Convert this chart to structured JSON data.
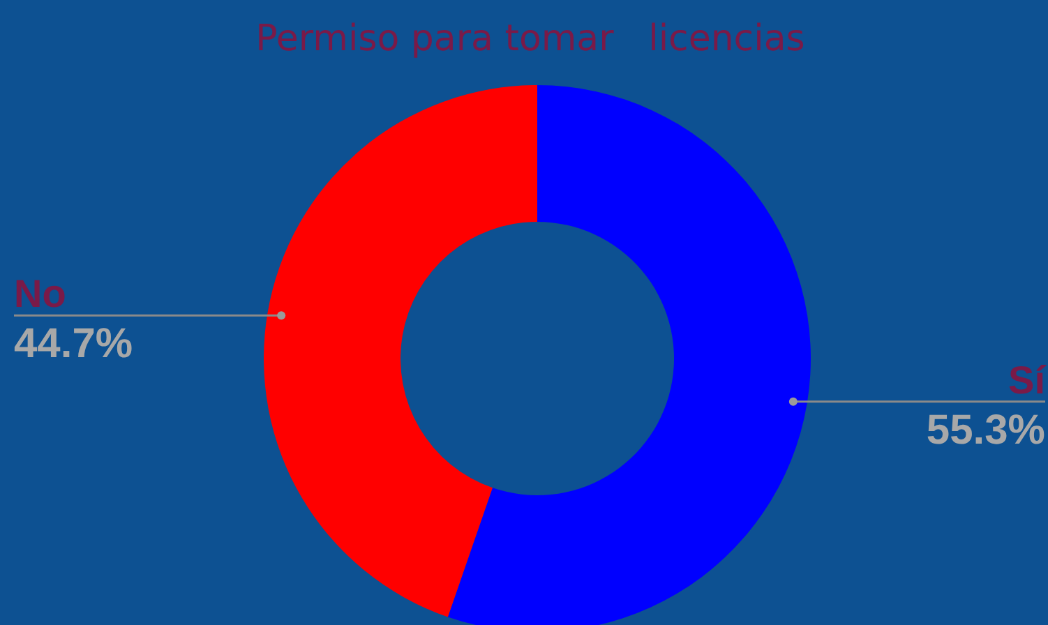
{
  "chart_data": {
    "type": "donut",
    "title": "Permiso para tomar   licencias",
    "categories": [
      "Sí",
      "No"
    ],
    "values": [
      55.3,
      44.7
    ],
    "colors": [
      "#0000ff",
      "#ff0000"
    ],
    "value_labels": [
      "55.3%",
      "44.7%"
    ],
    "legend": false
  }
}
